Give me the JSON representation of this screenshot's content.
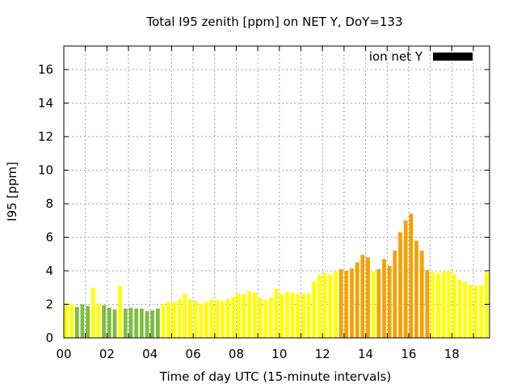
{
  "chart_data": {
    "type": "bar",
    "title": "Total I95 zenith [ppm] on NET Y, DoY=133",
    "xlabel": "Time of day UTC (15-minute intervals)",
    "ylabel": "I95 [ppm]",
    "xlim": [
      0,
      19.75
    ],
    "ylim": [
      0,
      17.4
    ],
    "xticks": [
      {
        "value": 0,
        "label": "00"
      },
      {
        "value": 2,
        "label": "02"
      },
      {
        "value": 4,
        "label": "04"
      },
      {
        "value": 6,
        "label": "06"
      },
      {
        "value": 8,
        "label": "08"
      },
      {
        "value": 10,
        "label": "10"
      },
      {
        "value": 12,
        "label": "12"
      },
      {
        "value": 14,
        "label": "14"
      },
      {
        "value": 16,
        "label": "16"
      },
      {
        "value": 18,
        "label": "18"
      }
    ],
    "yticks": [
      {
        "value": 0,
        "label": "0"
      },
      {
        "value": 2,
        "label": "2"
      },
      {
        "value": 4,
        "label": "4"
      },
      {
        "value": 6,
        "label": "6"
      },
      {
        "value": 8,
        "label": "8"
      },
      {
        "value": 10,
        "label": "10"
      },
      {
        "value": 12,
        "label": "12"
      },
      {
        "value": 14,
        "label": "14"
      },
      {
        "value": 16,
        "label": "16"
      }
    ],
    "grid": true,
    "legend": {
      "position": "top-right",
      "label": "ion net Y",
      "color": "#000000"
    },
    "colors": {
      "green": "#7dbd3f",
      "yellow": "#ffff00",
      "orange": "#f5a000"
    },
    "bar_width_hours": 0.18,
    "bars": [
      {
        "x": 0.0,
        "value": 2.1,
        "color": "yellow"
      },
      {
        "x": 0.25,
        "value": 2.05,
        "color": "yellow"
      },
      {
        "x": 0.5,
        "value": 1.85,
        "color": "green"
      },
      {
        "x": 0.75,
        "value": 2.0,
        "color": "green"
      },
      {
        "x": 1.0,
        "value": 1.9,
        "color": "green"
      },
      {
        "x": 1.25,
        "value": 3.0,
        "color": "yellow"
      },
      {
        "x": 1.5,
        "value": 2.05,
        "color": "yellow"
      },
      {
        "x": 1.75,
        "value": 1.95,
        "color": "green"
      },
      {
        "x": 2.0,
        "value": 1.8,
        "color": "green"
      },
      {
        "x": 2.25,
        "value": 1.7,
        "color": "green"
      },
      {
        "x": 2.5,
        "value": 3.1,
        "color": "yellow"
      },
      {
        "x": 2.75,
        "value": 1.75,
        "color": "green"
      },
      {
        "x": 3.0,
        "value": 1.8,
        "color": "green"
      },
      {
        "x": 3.25,
        "value": 1.75,
        "color": "green"
      },
      {
        "x": 3.5,
        "value": 1.75,
        "color": "green"
      },
      {
        "x": 3.75,
        "value": 1.6,
        "color": "green"
      },
      {
        "x": 4.0,
        "value": 1.65,
        "color": "green"
      },
      {
        "x": 4.25,
        "value": 1.75,
        "color": "green"
      },
      {
        "x": 4.5,
        "value": 2.0,
        "color": "yellow"
      },
      {
        "x": 4.75,
        "value": 2.15,
        "color": "yellow"
      },
      {
        "x": 5.0,
        "value": 2.1,
        "color": "yellow"
      },
      {
        "x": 5.25,
        "value": 2.3,
        "color": "yellow"
      },
      {
        "x": 5.5,
        "value": 2.65,
        "color": "yellow"
      },
      {
        "x": 5.75,
        "value": 2.3,
        "color": "yellow"
      },
      {
        "x": 6.0,
        "value": 2.2,
        "color": "yellow"
      },
      {
        "x": 6.25,
        "value": 2.05,
        "color": "yellow"
      },
      {
        "x": 6.5,
        "value": 2.15,
        "color": "yellow"
      },
      {
        "x": 6.75,
        "value": 2.3,
        "color": "yellow"
      },
      {
        "x": 7.0,
        "value": 2.25,
        "color": "yellow"
      },
      {
        "x": 7.25,
        "value": 2.2,
        "color": "yellow"
      },
      {
        "x": 7.5,
        "value": 2.3,
        "color": "yellow"
      },
      {
        "x": 7.75,
        "value": 2.45,
        "color": "yellow"
      },
      {
        "x": 8.0,
        "value": 2.65,
        "color": "yellow"
      },
      {
        "x": 8.25,
        "value": 2.6,
        "color": "yellow"
      },
      {
        "x": 8.5,
        "value": 2.8,
        "color": "yellow"
      },
      {
        "x": 8.75,
        "value": 2.7,
        "color": "yellow"
      },
      {
        "x": 9.0,
        "value": 2.4,
        "color": "yellow"
      },
      {
        "x": 9.25,
        "value": 2.25,
        "color": "yellow"
      },
      {
        "x": 9.5,
        "value": 2.4,
        "color": "yellow"
      },
      {
        "x": 9.75,
        "value": 2.95,
        "color": "yellow"
      },
      {
        "x": 10.0,
        "value": 2.6,
        "color": "yellow"
      },
      {
        "x": 10.25,
        "value": 2.75,
        "color": "yellow"
      },
      {
        "x": 10.5,
        "value": 2.7,
        "color": "yellow"
      },
      {
        "x": 10.75,
        "value": 2.6,
        "color": "yellow"
      },
      {
        "x": 11.0,
        "value": 2.65,
        "color": "yellow"
      },
      {
        "x": 11.25,
        "value": 2.65,
        "color": "yellow"
      },
      {
        "x": 11.5,
        "value": 3.35,
        "color": "yellow"
      },
      {
        "x": 11.75,
        "value": 3.75,
        "color": "yellow"
      },
      {
        "x": 12.0,
        "value": 3.85,
        "color": "yellow"
      },
      {
        "x": 12.25,
        "value": 3.75,
        "color": "yellow"
      },
      {
        "x": 12.5,
        "value": 3.95,
        "color": "yellow"
      },
      {
        "x": 12.75,
        "value": 4.1,
        "color": "orange"
      },
      {
        "x": 13.0,
        "value": 4.0,
        "color": "orange"
      },
      {
        "x": 13.25,
        "value": 4.15,
        "color": "orange"
      },
      {
        "x": 13.5,
        "value": 4.5,
        "color": "orange"
      },
      {
        "x": 13.75,
        "value": 4.95,
        "color": "orange"
      },
      {
        "x": 14.0,
        "value": 4.8,
        "color": "orange"
      },
      {
        "x": 14.25,
        "value": 3.95,
        "color": "yellow"
      },
      {
        "x": 14.5,
        "value": 4.1,
        "color": "orange"
      },
      {
        "x": 14.75,
        "value": 4.7,
        "color": "orange"
      },
      {
        "x": 15.0,
        "value": 4.3,
        "color": "orange"
      },
      {
        "x": 15.25,
        "value": 5.2,
        "color": "orange"
      },
      {
        "x": 15.5,
        "value": 6.3,
        "color": "orange"
      },
      {
        "x": 15.75,
        "value": 7.0,
        "color": "orange"
      },
      {
        "x": 16.0,
        "value": 7.4,
        "color": "orange"
      },
      {
        "x": 16.25,
        "value": 5.8,
        "color": "orange"
      },
      {
        "x": 16.5,
        "value": 5.2,
        "color": "orange"
      },
      {
        "x": 16.75,
        "value": 4.05,
        "color": "orange"
      },
      {
        "x": 17.0,
        "value": 3.9,
        "color": "yellow"
      },
      {
        "x": 17.25,
        "value": 3.85,
        "color": "yellow"
      },
      {
        "x": 17.5,
        "value": 3.95,
        "color": "yellow"
      },
      {
        "x": 17.75,
        "value": 4.0,
        "color": "yellow"
      },
      {
        "x": 18.0,
        "value": 3.8,
        "color": "yellow"
      },
      {
        "x": 18.25,
        "value": 3.45,
        "color": "yellow"
      },
      {
        "x": 18.5,
        "value": 3.35,
        "color": "yellow"
      },
      {
        "x": 18.75,
        "value": 3.15,
        "color": "yellow"
      },
      {
        "x": 19.0,
        "value": 3.1,
        "color": "yellow"
      },
      {
        "x": 19.25,
        "value": 3.15,
        "color": "yellow"
      },
      {
        "x": 19.5,
        "value": 3.9,
        "color": "yellow"
      }
    ]
  }
}
